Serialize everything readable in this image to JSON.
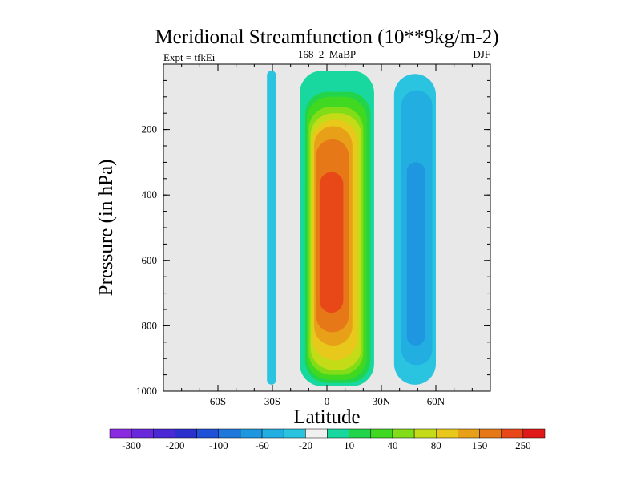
{
  "chart_data": {
    "type": "heatmap",
    "title": "Meridional Streamfunction (10**9kg/m-2)",
    "subtitle_left": "Expt = tfkEi",
    "subtitle_center": "168_2_MaBP",
    "subtitle_right": "DJF",
    "xlabel": "Latitude",
    "ylabel": "Pressure (in hPa)",
    "xlim": [
      -90,
      90
    ],
    "ylim": [
      1000,
      0
    ],
    "x_ticks": [
      {
        "value": -60,
        "label": "60S"
      },
      {
        "value": -30,
        "label": "30S"
      },
      {
        "value": 0,
        "label": "0"
      },
      {
        "value": 30,
        "label": "30N"
      },
      {
        "value": 60,
        "label": "60N"
      }
    ],
    "y_ticks": [
      {
        "value": 200,
        "label": "200"
      },
      {
        "value": 400,
        "label": "400"
      },
      {
        "value": 600,
        "label": "600"
      },
      {
        "value": 800,
        "label": "800"
      },
      {
        "value": 1000,
        "label": "1000"
      }
    ],
    "background_color": "#e8e8e8",
    "colorbar": {
      "levels": [
        -300,
        -250,
        -200,
        -150,
        -100,
        -80,
        -60,
        -40,
        -20,
        -10,
        10,
        20,
        40,
        60,
        80,
        100,
        150,
        200,
        250,
        300
      ],
      "labels": [
        "-300",
        "-200",
        "-100",
        "-60",
        "-20",
        "10",
        "40",
        "80",
        "150",
        "250"
      ],
      "colors": [
        "#8a2be2",
        "#6a28dc",
        "#4a28d4",
        "#2a30cc",
        "#1e50d8",
        "#1e78dc",
        "#1e96e0",
        "#22aee0",
        "#2ac3e0",
        "#f0f0f0",
        "#18d8a0",
        "#22d44a",
        "#40d820",
        "#82dc18",
        "#c4dc18",
        "#e8c81a",
        "#e8a018",
        "#e67818",
        "#e84818",
        "#e01818"
      ]
    },
    "contour_bands": [
      {
        "level": 10,
        "color": "#18d8a0",
        "lat_lo": -15,
        "lat_hi": 26,
        "p_top": 20,
        "p_bot": 985
      },
      {
        "level": 20,
        "color": "#22d44a",
        "lat_lo": -12,
        "lat_hi": 24,
        "p_top": 85,
        "p_bot": 975
      },
      {
        "level": 40,
        "color": "#40d820",
        "lat_lo": -11,
        "lat_hi": 22,
        "p_top": 100,
        "p_bot": 965
      },
      {
        "level": 60,
        "color": "#82dc18",
        "lat_lo": -10,
        "lat_hi": 20,
        "p_top": 130,
        "p_bot": 950
      },
      {
        "level": 80,
        "color": "#c4dc18",
        "lat_lo": -9,
        "lat_hi": 19,
        "p_top": 150,
        "p_bot": 935
      },
      {
        "level": 100,
        "color": "#e8c81a",
        "lat_lo": -8,
        "lat_hi": 17,
        "p_top": 170,
        "p_bot": 905
      },
      {
        "level": 150,
        "color": "#e8a018",
        "lat_lo": -7,
        "lat_hi": 14,
        "p_top": 190,
        "p_bot": 860
      },
      {
        "level": 200,
        "color": "#e67818",
        "lat_lo": -6,
        "lat_hi": 12,
        "p_top": 230,
        "p_bot": 820
      },
      {
        "level": 250,
        "color": "#e84818",
        "lat_lo": -4,
        "lat_hi": 9,
        "p_top": 330,
        "p_bot": 760
      },
      {
        "level": -20,
        "color": "#2ac3e0",
        "lat_lo": 37,
        "lat_hi": 60,
        "p_top": 30,
        "p_bot": 980
      },
      {
        "level": -20,
        "color": "#2ac3e0",
        "lat_lo": -33,
        "lat_hi": -28,
        "p_top": 20,
        "p_bot": 980
      },
      {
        "level": -40,
        "color": "#22aee0",
        "lat_lo": 41,
        "lat_hi": 58,
        "p_top": 80,
        "p_bot": 920
      },
      {
        "level": -60,
        "color": "#1e96e0",
        "lat_lo": 44,
        "lat_hi": 54,
        "p_top": 300,
        "p_bot": 860
      }
    ]
  }
}
